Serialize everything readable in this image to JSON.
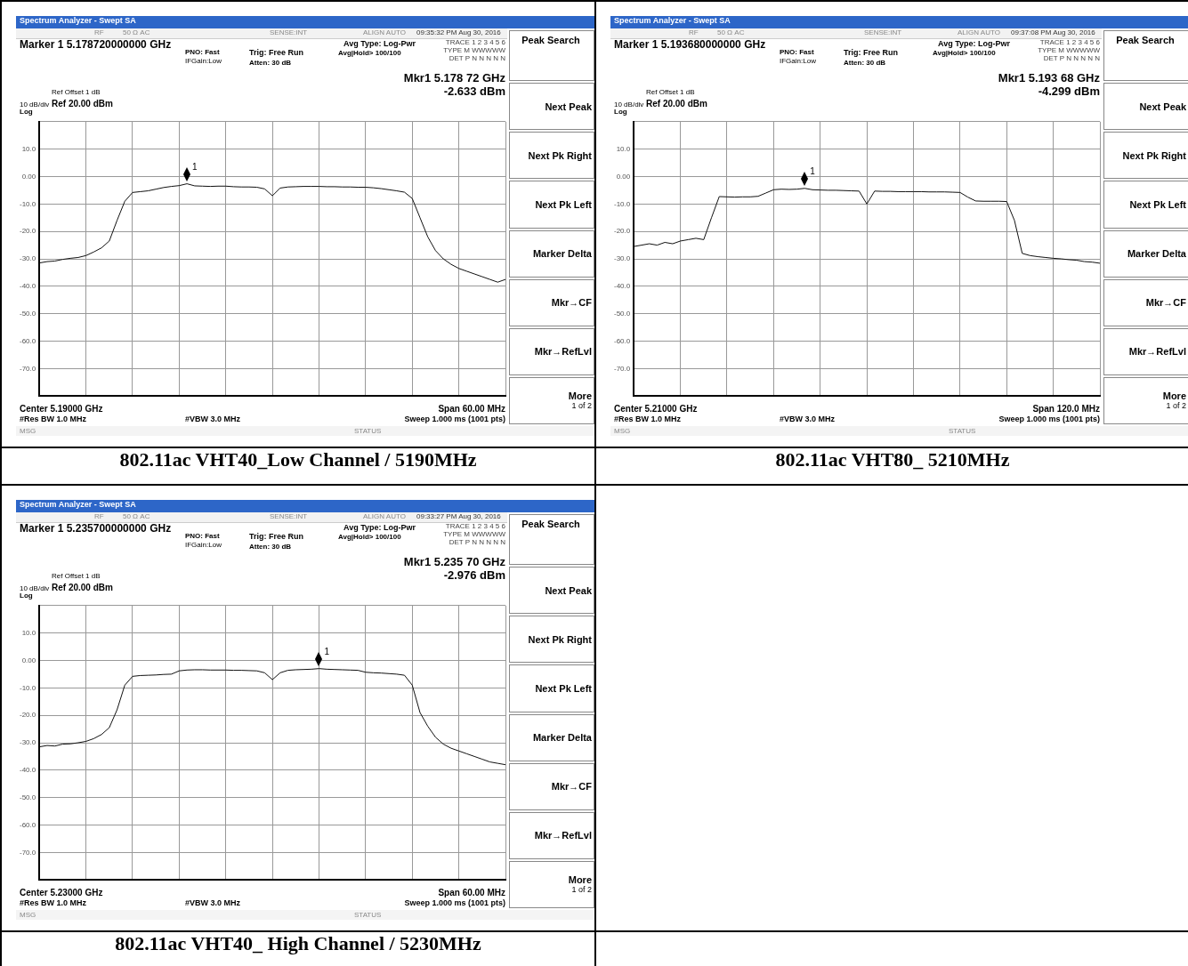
{
  "chart_data": [
    {
      "type": "line",
      "title": "802.11ac VHT40_Low Channel / 5190MHz",
      "color": "#111111",
      "grid": true,
      "tick_labels": "y",
      "categories": [
        null,
        null,
        null,
        null,
        null,
        null,
        null,
        null,
        null,
        null,
        null,
        null,
        null,
        null,
        null,
        null,
        null,
        null,
        null,
        null,
        null,
        null,
        null,
        null,
        null,
        null,
        null,
        null,
        null,
        null,
        null,
        null,
        null,
        null,
        null,
        null,
        null,
        null,
        null,
        null,
        null,
        null,
        null,
        null,
        null,
        null,
        null,
        null,
        null,
        null,
        null,
        null,
        null,
        null,
        null,
        null,
        null,
        null,
        null,
        null,
        null
      ],
      "ylim": [
        -80,
        20
      ],
      "yticks": [
        {
          "value": 20,
          "label": null
        },
        {
          "value": 10,
          "label": "10.0"
        },
        {
          "value": 0,
          "label": "0.00"
        },
        {
          "value": -10,
          "label": "-10.0"
        },
        {
          "value": -20,
          "label": "-20.0"
        },
        {
          "value": -30,
          "label": "-30.0"
        },
        {
          "value": -40,
          "label": "-40.0"
        },
        {
          "value": -50,
          "label": "-50.0"
        },
        {
          "value": -60,
          "label": "-60.0"
        },
        {
          "value": -70,
          "label": "-70.0"
        },
        {
          "value": -80,
          "label": null
        }
      ],
      "values": [
        -31.5,
        -31,
        -30.8,
        -30.2,
        -29.8,
        -29.5,
        -28.8,
        -27.5,
        -26,
        -23.5,
        -16,
        -9,
        -5.8,
        -5.5,
        -5.2,
        -4.6,
        -4,
        -3.6,
        -3.3,
        -2.633,
        -3.4,
        -3.5,
        -3.6,
        -3.5,
        -3.5,
        -3.7,
        -3.8,
        -3.8,
        -3.9,
        -4.5,
        -7,
        -4.2,
        -3.8,
        -3.7,
        -3.6,
        -3.6,
        -3.6,
        -3.7,
        -3.7,
        -3.8,
        -3.8,
        -3.9,
        -3.9,
        -4.1,
        -4.4,
        -4.8,
        -5.2,
        -5.7,
        -8,
        -15,
        -22,
        -27,
        -30,
        -32,
        -33.5,
        -34.5,
        -35.5,
        -36.5,
        -37.5,
        -38.5,
        -37.5
      ],
      "annotations": [
        "Spectrum Analyzer - Swept SA",
        "RF",
        "50 Ω  AC",
        "SENSE:INT",
        "ALIGN AUTO",
        "09:35:32 PM Aug 30, 2016",
        "Marker 1 5.178720000000 GHz",
        "PNO: Fast",
        "IFGain:Low",
        "Trig: Free Run",
        "Atten: 30 dB",
        "Avg Type: Log-Pwr",
        "Avg|Hold> 100/100",
        "TRACE 1 2 3 4 5 6",
        "TYPE M WWWWW",
        "DET P N N N N N",
        "Mkr1 5.178 72 GHz",
        "-2.633 dBm",
        "Ref Offset 1 dB",
        "10 dB/div",
        "Ref 20.00 dBm",
        "Log",
        "Center 5.19000 GHz",
        "#Res BW 1.0 MHz",
        "#VBW 3.0 MHz",
        "Span 60.00 MHz",
        "Sweep  1.000 ms (1001 pts)",
        "MSG",
        "STATUS",
        "Peak Search",
        "Next Peak",
        "Next Pk Right",
        "Next Pk Left",
        "Marker Delta",
        "Mkr→CF",
        "Mkr→RefLvl",
        "More",
        "1 of 2",
        {
          "text": "1",
          "y": -2.633
        }
      ]
    },
    {
      "type": "line",
      "title": "802.11ac VHT80_ 5210MHz",
      "color": "#111111",
      "grid": true,
      "tick_labels": "y",
      "categories": [
        null,
        null,
        null,
        null,
        null,
        null,
        null,
        null,
        null,
        null,
        null,
        null,
        null,
        null,
        null,
        null,
        null,
        null,
        null,
        null,
        null,
        null,
        null,
        null,
        null,
        null,
        null,
        null,
        null,
        null,
        null,
        null,
        null,
        null,
        null,
        null,
        null,
        null,
        null,
        null,
        null,
        null,
        null,
        null,
        null,
        null,
        null,
        null,
        null,
        null,
        null,
        null,
        null,
        null,
        null,
        null,
        null,
        null,
        null,
        null,
        null
      ],
      "ylim": [
        -80,
        20
      ],
      "yticks": [
        {
          "value": 20,
          "label": null
        },
        {
          "value": 10,
          "label": "10.0"
        },
        {
          "value": 0,
          "label": "0.00"
        },
        {
          "value": -10,
          "label": "-10.0"
        },
        {
          "value": -20,
          "label": "-20.0"
        },
        {
          "value": -30,
          "label": "-30.0"
        },
        {
          "value": -40,
          "label": "-40.0"
        },
        {
          "value": -50,
          "label": "-50.0"
        },
        {
          "value": -60,
          "label": "-60.0"
        },
        {
          "value": -70,
          "label": "-70.0"
        },
        {
          "value": -80,
          "label": null
        }
      ],
      "values": [
        -25.5,
        -25,
        -24.5,
        -25,
        -24,
        -24.5,
        -23.5,
        -23,
        -22.5,
        -23,
        -15,
        -7.3,
        -7.4,
        -7.5,
        -7.4,
        -7.4,
        -7.2,
        -6,
        -4.8,
        -4.6,
        -4.7,
        -4.6,
        -4.299,
        -4.8,
        -4.9,
        -5,
        -5,
        -5.1,
        -5.2,
        -5.3,
        -10,
        -5.3,
        -5.4,
        -5.4,
        -5.5,
        -5.5,
        -5.5,
        -5.5,
        -5.6,
        -5.6,
        -5.6,
        -5.7,
        -5.8,
        -7.5,
        -8.9,
        -9,
        -9,
        -9,
        -9.1,
        -16,
        -28,
        -28.8,
        -29.2,
        -29.5,
        -29.8,
        -30,
        -30.3,
        -30.5,
        -31,
        -31.2,
        -31.6
      ],
      "annotations": [
        "Spectrum Analyzer - Swept SA",
        "RF",
        "50 Ω  AC",
        "SENSE:INT",
        "ALIGN AUTO",
        "09:37:08 PM Aug 30, 2016",
        "Marker 1 5.193680000000 GHz",
        "PNO: Fast",
        "IFGain:Low",
        "Trig: Free Run",
        "Atten: 30 dB",
        "Avg Type: Log-Pwr",
        "Avg|Hold> 100/100",
        "TRACE 1 2 3 4 5 6",
        "TYPE M WWWWW",
        "DET P N N N N N",
        "Mkr1 5.193 68 GHz",
        "-4.299 dBm",
        "Ref Offset 1 dB",
        "10 dB/div",
        "Ref 20.00 dBm",
        "Log",
        "Center 5.21000 GHz",
        "#Res BW 1.0 MHz",
        "#VBW 3.0 MHz",
        "Span 120.0 MHz",
        "Sweep  1.000 ms (1001 pts)",
        "MSG",
        "STATUS",
        "Peak Search",
        "Next Peak",
        "Next Pk Right",
        "Next Pk Left",
        "Marker Delta",
        "Mkr→CF",
        "Mkr→RefLvl",
        "More",
        "1 of 2",
        {
          "text": "1",
          "y": -4.299
        }
      ]
    },
    {
      "type": "line",
      "title": "802.11ac VHT40_ High Channel / 5230MHz",
      "color": "#111111",
      "grid": true,
      "tick_labels": "y",
      "categories": [
        null,
        null,
        null,
        null,
        null,
        null,
        null,
        null,
        null,
        null,
        null,
        null,
        null,
        null,
        null,
        null,
        null,
        null,
        null,
        null,
        null,
        null,
        null,
        null,
        null,
        null,
        null,
        null,
        null,
        null,
        null,
        null,
        null,
        null,
        null,
        null,
        null,
        null,
        null,
        null,
        null,
        null,
        null,
        null,
        null,
        null,
        null,
        null,
        null,
        null,
        null,
        null,
        null,
        null,
        null,
        null,
        null,
        null,
        null,
        null,
        null
      ],
      "ylim": [
        -80,
        20
      ],
      "yticks": [
        {
          "value": 20,
          "label": null
        },
        {
          "value": 10,
          "label": "10.0"
        },
        {
          "value": 0,
          "label": "0.00"
        },
        {
          "value": -10,
          "label": "-10.0"
        },
        {
          "value": -20,
          "label": "-20.0"
        },
        {
          "value": -30,
          "label": "-30.0"
        },
        {
          "value": -40,
          "label": "-40.0"
        },
        {
          "value": -50,
          "label": "-50.0"
        },
        {
          "value": -60,
          "label": "-60.0"
        },
        {
          "value": -70,
          "label": "-70.0"
        },
        {
          "value": -80,
          "label": null
        }
      ],
      "values": [
        -31.5,
        -31,
        -31.2,
        -30.5,
        -30.4,
        -30,
        -29.5,
        -28.5,
        -27,
        -24.5,
        -18,
        -9,
        -5.8,
        -5.5,
        -5.4,
        -5.3,
        -5.1,
        -5,
        -3.8,
        -3.5,
        -3.4,
        -3.4,
        -3.5,
        -3.5,
        -3.5,
        -3.6,
        -3.6,
        -3.7,
        -3.8,
        -4.5,
        -7,
        -4.5,
        -3.6,
        -3.4,
        -3.3,
        -3.2,
        -2.976,
        -3.2,
        -3.3,
        -3.4,
        -3.5,
        -3.6,
        -4.3,
        -4.5,
        -4.6,
        -4.8,
        -5,
        -5.4,
        -9,
        -19,
        -24,
        -28,
        -30.5,
        -32,
        -33,
        -34,
        -35,
        -36,
        -37,
        -37.5,
        -38
      ],
      "annotations": [
        "Spectrum Analyzer - Swept SA",
        "RF",
        "50 Ω  AC",
        "SENSE:INT",
        "ALIGN AUTO",
        "09:33:27 PM Aug 30, 2016",
        "Marker 1 5.235700000000 GHz",
        "PNO: Fast",
        "IFGain:Low",
        "Trig: Free Run",
        "Atten: 30 dB",
        "Avg Type: Log-Pwr",
        "Avg|Hold> 100/100",
        "TRACE 1 2 3 4 5 6",
        "TYPE M WWWWW",
        "DET P N N N N N",
        "Mkr1 5.235 70 GHz",
        "-2.976 dBm",
        "Ref Offset 1 dB",
        "10 dB/div",
        "Ref 20.00 dBm",
        "Log",
        "Center 5.23000 GHz",
        "#Res BW 1.0 MHz",
        "#VBW 3.0 MHz",
        "Span 60.00 MHz",
        "Sweep  1.000 ms (1001 pts)",
        "MSG",
        "STATUS",
        "Peak Search",
        "Next Peak",
        "Next Pk Right",
        "Next Pk Left",
        "Marker Delta",
        "Mkr→CF",
        "Mkr→RefLvl",
        "More",
        "1 of 2",
        {
          "text": "1",
          "y": -2.976
        }
      ]
    }
  ]
}
